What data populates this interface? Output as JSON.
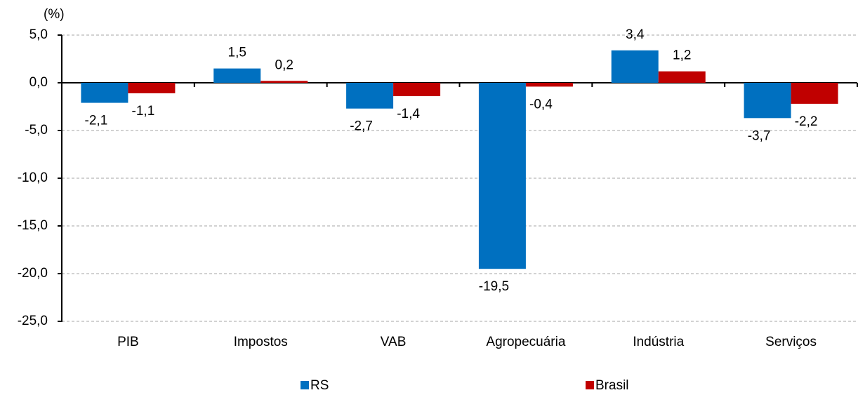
{
  "chart_data": {
    "type": "bar",
    "y_label": "(%)",
    "categories": [
      "PIB",
      "Impostos",
      "VAB",
      "Agropecuária",
      "Indústria",
      "Serviços"
    ],
    "series": [
      {
        "name": "RS",
        "color": "#0070c0",
        "values": [
          -2.1,
          1.5,
          -2.7,
          -19.5,
          3.4,
          -3.7
        ],
        "value_labels": [
          "-2,1",
          "1,5",
          "-2,7",
          "-19,5",
          "3,4",
          "-3,7"
        ]
      },
      {
        "name": "Brasil",
        "color": "#c00000",
        "values": [
          -1.1,
          0.2,
          -1.4,
          -0.4,
          1.2,
          -2.2
        ],
        "value_labels": [
          "-1,1",
          "0,2",
          "-1,4",
          "-0,4",
          "1,2",
          "-2,2"
        ]
      }
    ],
    "ylim": [
      -25,
      5
    ],
    "yticks": [
      {
        "value": -25,
        "label": "-25,0"
      },
      {
        "value": -20,
        "label": "-20,0"
      },
      {
        "value": -15,
        "label": "-15,0"
      },
      {
        "value": -10,
        "label": "-10,0"
      },
      {
        "value": -5,
        "label": "-5,0"
      },
      {
        "value": 0,
        "label": "0,0"
      },
      {
        "value": 5,
        "label": "5,0"
      }
    ],
    "grid": true,
    "legend": "bottom"
  }
}
